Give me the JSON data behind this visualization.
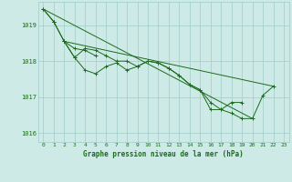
{
  "title": "Graphe pression niveau de la mer (hPa)",
  "background_color": "#ceeae6",
  "grid_color": "#9eccc8",
  "line_color": "#1a6b1a",
  "xlim": [
    -0.5,
    23.5
  ],
  "ylim": [
    1015.75,
    1019.65
  ],
  "yticks": [
    1016,
    1017,
    1018,
    1019
  ],
  "xticks": [
    0,
    1,
    2,
    3,
    4,
    5,
    6,
    7,
    8,
    9,
    10,
    11,
    12,
    13,
    14,
    15,
    16,
    17,
    18,
    19,
    20,
    21,
    22,
    23
  ],
  "series": [
    [
      1019.45,
      1019.1,
      null,
      null,
      null,
      null,
      null,
      null,
      null,
      null,
      null,
      null,
      null,
      null,
      null,
      null,
      null,
      null,
      null,
      null,
      null,
      null,
      null,
      null
    ],
    [
      null,
      1019.1,
      1018.55,
      1018.35,
      1018.3,
      1018.15,
      null,
      null,
      null,
      null,
      null,
      null,
      null,
      null,
      null,
      null,
      null,
      null,
      null,
      null,
      null,
      null,
      null,
      null
    ],
    [
      null,
      null,
      1018.55,
      1018.1,
      1017.75,
      1017.65,
      1017.85,
      1017.95,
      1017.75,
      1017.85,
      1018.0,
      1017.95,
      1017.8,
      1017.6,
      1017.35,
      1017.2,
      1016.85,
      1016.65,
      1016.55,
      1016.4,
      1016.4,
      1017.05,
      1017.3,
      null
    ],
    [
      1019.45,
      1019.1,
      1018.55,
      1018.1,
      1018.35,
      1018.3,
      1018.15,
      1018.0,
      1018.0,
      1017.85,
      1018.0,
      1017.95,
      1017.8,
      1017.6,
      1017.35,
      1017.2,
      1016.65,
      1016.65,
      1016.85,
      1016.85,
      null,
      null,
      null,
      null
    ]
  ],
  "series_straight": [
    [
      [
        0,
        1019.45
      ],
      [
        20,
        1016.4
      ]
    ],
    [
      [
        2,
        1018.55
      ],
      [
        22,
        1017.3
      ]
    ]
  ]
}
